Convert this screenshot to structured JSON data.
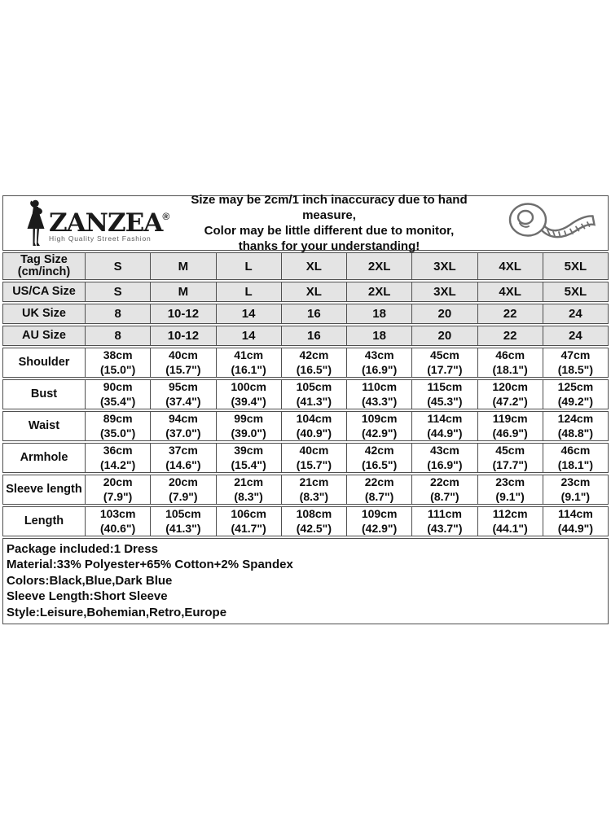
{
  "colors": {
    "border": "#4f4f4f",
    "header_cell_bg": "#e4e4e4",
    "cell_bg": "#ffffff",
    "tagline_color": "#595959"
  },
  "header": {
    "brand": {
      "name": "ZANZEA",
      "reg": "®",
      "tagline": "High Quality Street Fashion"
    },
    "disclaimer": [
      "Size may be 2cm/1 inch inaccuracy due to hand measure,",
      "Color may be little different due to monitor,",
      "thanks for your understanding!"
    ]
  },
  "size_table": {
    "columns": 8,
    "rows": [
      {
        "type": "header",
        "tall": true,
        "label": "Tag Size (cm/inch)",
        "label_lines": [
          "Tag Size",
          "(cm/inch)"
        ],
        "values": [
          "S",
          "M",
          "L",
          "XL",
          "2XL",
          "3XL",
          "4XL",
          "5XL"
        ]
      },
      {
        "type": "header",
        "label": "US/CA Size",
        "label_lines": [
          "US/CA Size"
        ],
        "values": [
          "S",
          "M",
          "L",
          "XL",
          "2XL",
          "3XL",
          "4XL",
          "5XL"
        ]
      },
      {
        "type": "header",
        "label": "UK Size",
        "label_lines": [
          "UK Size"
        ],
        "values": [
          "8",
          "10-12",
          "14",
          "16",
          "18",
          "20",
          "22",
          "24"
        ]
      },
      {
        "type": "header",
        "label": "AU Size",
        "label_lines": [
          "AU Size"
        ],
        "values": [
          "8",
          "10-12",
          "14",
          "16",
          "18",
          "20",
          "22",
          "24"
        ]
      },
      {
        "type": "measure",
        "label": "Shoulder",
        "label_lines": [
          "Shoulder"
        ],
        "cm": [
          "38cm",
          "40cm",
          "41cm",
          "42cm",
          "43cm",
          "45cm",
          "46cm",
          "47cm"
        ],
        "inch": [
          "(15.0\")",
          "(15.7\")",
          "(16.1\")",
          "(16.5\")",
          "(16.9\")",
          "(17.7\")",
          "(18.1\")",
          "(18.5\")"
        ]
      },
      {
        "type": "measure",
        "label": "Bust",
        "label_lines": [
          "Bust"
        ],
        "cm": [
          "90cm",
          "95cm",
          "100cm",
          "105cm",
          "110cm",
          "115cm",
          "120cm",
          "125cm"
        ],
        "inch": [
          "(35.4\")",
          "(37.4\")",
          "(39.4\")",
          "(41.3\")",
          "(43.3\")",
          "(45.3\")",
          "(47.2\")",
          "(49.2\")"
        ]
      },
      {
        "type": "measure",
        "label": "Waist",
        "label_lines": [
          "Waist"
        ],
        "cm": [
          "89cm",
          "94cm",
          "99cm",
          "104cm",
          "109cm",
          "114cm",
          "119cm",
          "124cm"
        ],
        "inch": [
          "(35.0\")",
          "(37.0\")",
          "(39.0\")",
          "(40.9\")",
          "(42.9\")",
          "(44.9\")",
          "(46.9\")",
          "(48.8\")"
        ]
      },
      {
        "type": "measure",
        "label": "Armhole",
        "label_lines": [
          "Armhole"
        ],
        "cm": [
          "36cm",
          "37cm",
          "39cm",
          "40cm",
          "42cm",
          "43cm",
          "45cm",
          "46cm"
        ],
        "inch": [
          "(14.2\")",
          "(14.6\")",
          "(15.4\")",
          "(15.7\")",
          "(16.5\")",
          "(16.9\")",
          "(17.7\")",
          "(18.1\")"
        ]
      },
      {
        "type": "measure",
        "label": "Sleeve length",
        "label_lines": [
          "Sleeve length"
        ],
        "cm": [
          "20cm",
          "20cm",
          "21cm",
          "21cm",
          "22cm",
          "22cm",
          "23cm",
          "23cm"
        ],
        "inch": [
          "(7.9\")",
          "(7.9\")",
          "(8.3\")",
          "(8.3\")",
          "(8.7\")",
          "(8.7\")",
          "(9.1\")",
          "(9.1\")"
        ]
      },
      {
        "type": "measure",
        "label": "Length",
        "label_lines": [
          "Length"
        ],
        "cm": [
          "103cm",
          "105cm",
          "106cm",
          "108cm",
          "109cm",
          "111cm",
          "112cm",
          "114cm"
        ],
        "inch": [
          "(40.6\")",
          "(41.3\")",
          "(41.7\")",
          "(42.5\")",
          "(42.9\")",
          "(43.7\")",
          "(44.1\")",
          "(44.9\")"
        ]
      }
    ]
  },
  "footer_lines": [
    "Package included:1 Dress",
    "Material:33% Polyester+65% Cotton+2% Spandex",
    "Colors:Black,Blue,Dark Blue",
    "Sleeve Length:Short Sleeve",
    "Style:Leisure,Bohemian,Retro,Europe"
  ]
}
